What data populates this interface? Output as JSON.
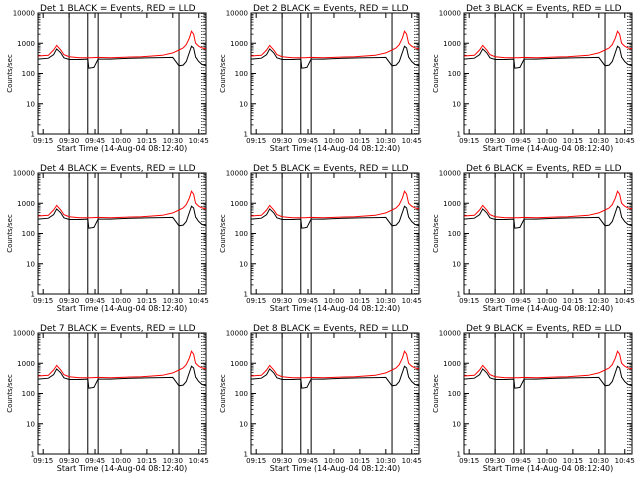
{
  "chart_data": {
    "type": "line",
    "x_tick_labels": [
      "09:15",
      "09:30",
      "09:45",
      "10:00",
      "10:15",
      "10:30",
      "10:45"
    ],
    "x_ticks_hours": [
      9.25,
      9.5,
      9.75,
      10.0,
      10.25,
      10.5,
      10.75
    ],
    "xlim": [
      9.2,
      10.82
    ],
    "yscale": "log",
    "ylim": [
      1,
      10000
    ],
    "y_tick_labels": [
      "1",
      "10",
      "100",
      "1000",
      "10000"
    ],
    "y_tick_values": [
      1,
      10,
      100,
      1000,
      10000
    ],
    "xlabel": "Start Time (14-Aug-04 08:12:40)",
    "ylabel": "Counts/sec",
    "vertical_lines_hours": [
      9.5,
      9.68,
      9.78,
      10.56
    ],
    "dotted_lines_hours": [
      10.78,
      10.8
    ],
    "series": [
      {
        "name": "Events",
        "color": "#000000",
        "x": [
          9.2,
          9.3,
          9.35,
          9.38,
          9.42,
          9.45,
          9.5,
          9.6,
          9.68,
          9.69,
          9.72,
          9.74,
          9.78,
          9.9,
          10.0,
          10.1,
          10.2,
          10.3,
          10.4,
          10.5,
          10.56,
          10.6,
          10.63,
          10.66,
          10.68,
          10.7,
          10.72,
          10.75,
          10.78,
          10.82
        ],
        "y": [
          300,
          320,
          420,
          650,
          480,
          330,
          290,
          290,
          300,
          150,
          155,
          160,
          300,
          300,
          310,
          320,
          325,
          330,
          335,
          340,
          180,
          190,
          250,
          500,
          800,
          700,
          350,
          250,
          200,
          180
        ]
      },
      {
        "name": "LLD",
        "color": "#ff0000",
        "x": [
          9.2,
          9.3,
          9.35,
          9.38,
          9.42,
          9.45,
          9.5,
          9.6,
          9.68,
          9.72,
          9.78,
          9.9,
          10.0,
          10.1,
          10.2,
          10.3,
          10.4,
          10.5,
          10.56,
          10.6,
          10.63,
          10.66,
          10.68,
          10.7,
          10.72,
          10.75,
          10.78,
          10.82
        ],
        "y": [
          380,
          400,
          600,
          850,
          600,
          420,
          360,
          330,
          330,
          330,
          340,
          330,
          340,
          350,
          360,
          380,
          400,
          480,
          600,
          700,
          900,
          1500,
          2500,
          2000,
          1000,
          800,
          700,
          650
        ]
      }
    ],
    "panels": [
      {
        "title": "Det 1  BLACK = Events, RED = LLD"
      },
      {
        "title": "Det 2  BLACK = Events, RED = LLD"
      },
      {
        "title": "Det 3  BLACK = Events, RED = LLD"
      },
      {
        "title": "Det 4  BLACK = Events, RED = LLD"
      },
      {
        "title": "Det 5  BLACK = Events, RED = LLD"
      },
      {
        "title": "Det 6  BLACK = Events, RED = LLD"
      },
      {
        "title": "Det 7  BLACK = Events, RED = LLD"
      },
      {
        "title": "Det 8  BLACK = Events, RED = LLD"
      },
      {
        "title": "Det 9  BLACK = Events, RED = LLD"
      }
    ]
  }
}
